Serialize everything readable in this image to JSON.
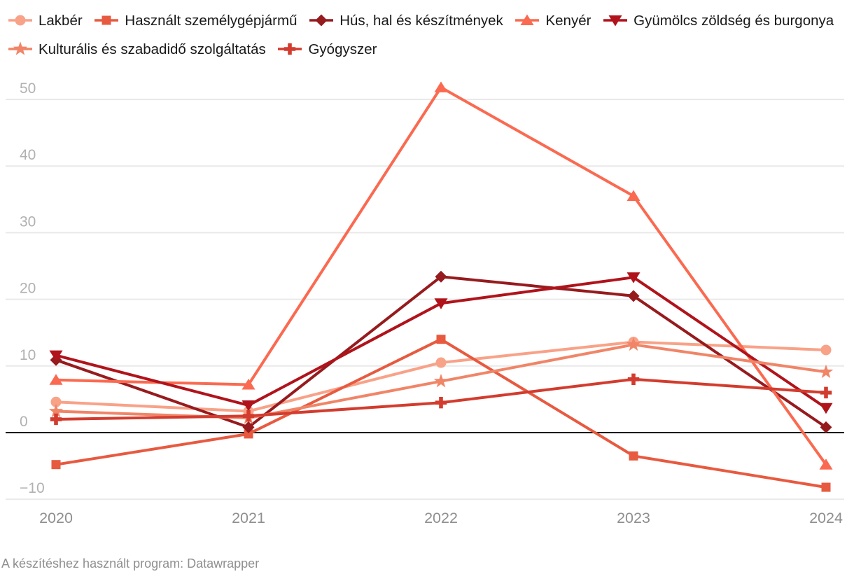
{
  "chart_data": {
    "type": "line",
    "title": "",
    "categories": [
      "2020",
      "2021",
      "2022",
      "2023",
      "2024"
    ],
    "series": [
      {
        "name": "Lakbér",
        "marker": "circle",
        "color": "#F8A288",
        "values": [
          4.6,
          3.2,
          10.5,
          13.6,
          12.4
        ]
      },
      {
        "name": "Használt személygépjármű",
        "marker": "square",
        "color": "#E75A40",
        "values": [
          -4.8,
          -0.2,
          14.0,
          -3.5,
          -8.2
        ]
      },
      {
        "name": "Hús, hal és készítmények",
        "marker": "diamond",
        "color": "#961B1E",
        "values": [
          10.9,
          0.8,
          23.4,
          20.5,
          0.8
        ]
      },
      {
        "name": "Kenyér",
        "marker": "triangle-up",
        "color": "#FA6A51",
        "values": [
          7.9,
          7.2,
          51.8,
          35.5,
          -4.8
        ]
      },
      {
        "name": "Gyümölcs zöldség és burgonya",
        "marker": "triangle-down",
        "color": "#B0131B",
        "values": [
          11.6,
          4.1,
          19.4,
          23.3,
          3.7
        ]
      },
      {
        "name": "Kulturális és szabadidő szolgáltatás",
        "marker": "star",
        "color": "#F08568",
        "values": [
          3.2,
          2.2,
          7.7,
          13.2,
          9.1
        ]
      },
      {
        "name": "Gyógyszer",
        "marker": "plus",
        "color": "#D23C2E",
        "values": [
          2.0,
          2.5,
          4.5,
          8.0,
          6.0
        ]
      }
    ],
    "y_ticks": [
      50,
      40,
      30,
      20,
      10,
      0,
      -10
    ],
    "y_tick_labels": [
      "50",
      "40",
      "30",
      "20",
      "10",
      "0",
      "−10"
    ],
    "ylim": [
      -12,
      53
    ],
    "grid": true,
    "zero_line": true,
    "legend_position": "top",
    "grid_color": "#e9e9e9",
    "zero_line_color": "#000000",
    "y_label_color": "#b1b1b1",
    "x_label_color": "#8f8f8f"
  },
  "footer": {
    "credit": "A készítéshez használt program: Datawrapper"
  }
}
